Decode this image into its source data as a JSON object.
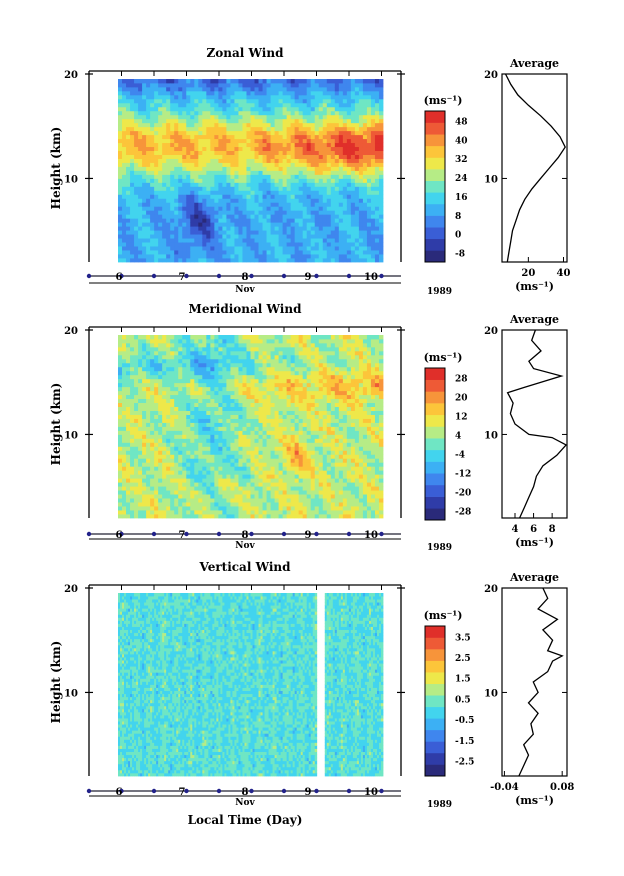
{
  "chart_data": [
    {
      "type": "heatmap",
      "title": "Zonal Wind",
      "ylabel": "Height (km)",
      "yticks": [
        "20",
        "10"
      ],
      "ylim": [
        2,
        20
      ],
      "xticks": [
        "6",
        "7",
        "8",
        "9",
        "10"
      ],
      "month": "Nov",
      "year": "1989",
      "colorbar": {
        "unit_label": "(ms⁻¹)",
        "ticks": [
          "48",
          "40",
          "32",
          "24",
          "16",
          "8",
          "0",
          "-8"
        ],
        "min": -12,
        "max": 52,
        "colors": [
          "#2a2a7a",
          "#2f3ca8",
          "#3a5ed6",
          "#3f86ee",
          "#3cb0f4",
          "#42d4ee",
          "#6fe6c4",
          "#b6ec86",
          "#eee84a",
          "#fcc53a",
          "#f7943a",
          "#ee5a36",
          "#e02f2a"
        ]
      },
      "average": {
        "title": "Average",
        "xticks": [
          "20",
          "40"
        ],
        "xlim": [
          5,
          42
        ],
        "unit_label": "(ms⁻¹)",
        "profile": [
          [
            8,
            2
          ],
          [
            9,
            3
          ],
          [
            10,
            4
          ],
          [
            11,
            5
          ],
          [
            13,
            6
          ],
          [
            15,
            7
          ],
          [
            18,
            8
          ],
          [
            22,
            9
          ],
          [
            27,
            10
          ],
          [
            32,
            11
          ],
          [
            37,
            12
          ],
          [
            41,
            13
          ],
          [
            38,
            14
          ],
          [
            33,
            15
          ],
          [
            27,
            16
          ],
          [
            20,
            17
          ],
          [
            14,
            18
          ],
          [
            10,
            19
          ],
          [
            7,
            20
          ]
        ]
      }
    },
    {
      "type": "heatmap",
      "title": "Meridional Wind",
      "ylabel": "Height (km)",
      "yticks": [
        "20",
        "10"
      ],
      "ylim": [
        2,
        20
      ],
      "xticks": [
        "6",
        "7",
        "8",
        "9",
        "10"
      ],
      "month": "Nov",
      "year": "1989",
      "colorbar": {
        "unit_label": "(ms⁻¹)",
        "ticks": [
          "28",
          "20",
          "12",
          "4",
          "-4",
          "-12",
          "-20",
          "-28"
        ],
        "min": -32,
        "max": 32,
        "colors": [
          "#2a2a7a",
          "#2f3ca8",
          "#3a5ed6",
          "#3f86ee",
          "#3cb0f4",
          "#42d4ee",
          "#6fe6c4",
          "#b6ec86",
          "#eee84a",
          "#fcc53a",
          "#f7943a",
          "#ee5a36",
          "#e02f2a"
        ]
      },
      "average": {
        "title": "Average",
        "xticks": [
          "4",
          "6",
          "8"
        ],
        "xlim": [
          2.6,
          9.6
        ],
        "unit_label": "(ms⁻¹)",
        "profile": [
          [
            4.5,
            2
          ],
          [
            5,
            3
          ],
          [
            5.5,
            4
          ],
          [
            6,
            5
          ],
          [
            6.3,
            6
          ],
          [
            7,
            7
          ],
          [
            8.5,
            8
          ],
          [
            9.5,
            9
          ],
          [
            8,
            9.7
          ],
          [
            5.5,
            10
          ],
          [
            4,
            11
          ],
          [
            3.5,
            12
          ],
          [
            3.8,
            13
          ],
          [
            3.2,
            14
          ],
          [
            5,
            14.5
          ],
          [
            9,
            15.6
          ],
          [
            6,
            16.3
          ],
          [
            5.5,
            17
          ],
          [
            6.8,
            18
          ],
          [
            5.8,
            19
          ],
          [
            6.2,
            20
          ]
        ]
      }
    },
    {
      "type": "heatmap",
      "title": "Vertical Wind",
      "ylabel": "Height (km)",
      "yticks": [
        "20",
        "10"
      ],
      "ylim": [
        2,
        20
      ],
      "xticks": [
        "6",
        "7",
        "8",
        "9",
        "10"
      ],
      "month": "Nov",
      "year": "1989",
      "xlabel": "Local Time (Day)",
      "colorbar": {
        "unit_label": "(ms⁻¹)",
        "ticks": [
          "3.5",
          "2.5",
          "1.5",
          "0.5",
          "-0.5",
          "-1.5",
          "-2.5"
        ],
        "min": -3.25,
        "max": 4.0,
        "colors": [
          "#2a2a7a",
          "#2f3ca8",
          "#3a5ed6",
          "#3f86ee",
          "#3cb0f4",
          "#42d4ee",
          "#6fe6c4",
          "#b6ec86",
          "#eee84a",
          "#fcc53a",
          "#f7943a",
          "#ee5a36",
          "#e02f2a"
        ]
      },
      "average": {
        "title": "Average",
        "xticks": [
          "-0.04",
          "0.08"
        ],
        "xlim": [
          -0.045,
          0.09
        ],
        "unit_label": "(ms⁻¹)",
        "profile": [
          [
            -0.01,
            2
          ],
          [
            0,
            3
          ],
          [
            0.01,
            4
          ],
          [
            0.0,
            5
          ],
          [
            0.02,
            6
          ],
          [
            0.015,
            7
          ],
          [
            0.03,
            8
          ],
          [
            0.01,
            9
          ],
          [
            0.03,
            10
          ],
          [
            0.02,
            11
          ],
          [
            0.05,
            12
          ],
          [
            0.06,
            13
          ],
          [
            0.08,
            13.5
          ],
          [
            0.05,
            14
          ],
          [
            0.06,
            15
          ],
          [
            0.04,
            16
          ],
          [
            0.07,
            17
          ],
          [
            0.03,
            18
          ],
          [
            0.05,
            19
          ],
          [
            0.04,
            20
          ]
        ]
      }
    }
  ]
}
